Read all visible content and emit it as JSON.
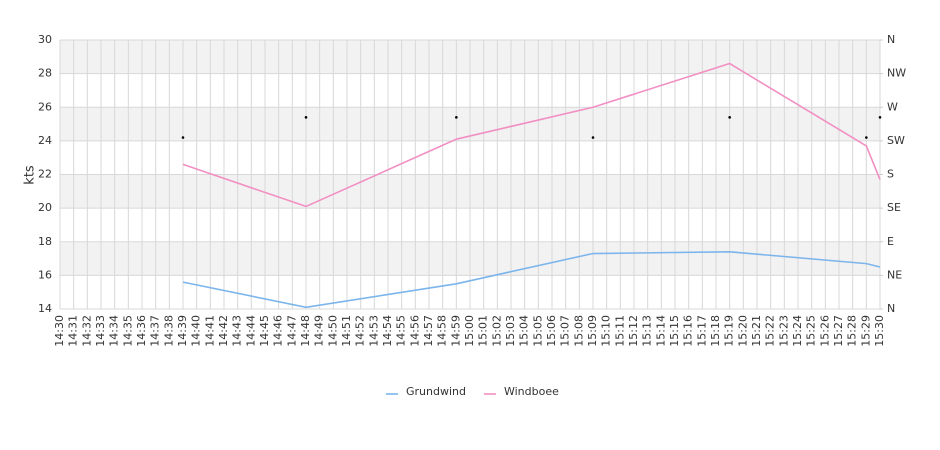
{
  "chart_data": {
    "type": "line",
    "categories": [
      "14:30",
      "14:31",
      "14:32",
      "14:33",
      "14:34",
      "14:35",
      "14:36",
      "14:37",
      "14:38",
      "14:39",
      "14:40",
      "14:41",
      "14:42",
      "14:43",
      "14:44",
      "14:45",
      "14:46",
      "14:47",
      "14:48",
      "14:49",
      "14:50",
      "14:51",
      "14:52",
      "14:53",
      "14:54",
      "14:55",
      "14:56",
      "14:57",
      "14:58",
      "14:59",
      "15:00",
      "15:01",
      "15:02",
      "15:03",
      "15:04",
      "15:05",
      "15:06",
      "15:07",
      "15:08",
      "15:09",
      "15:10",
      "15:11",
      "15:12",
      "15:13",
      "15:14",
      "15:15",
      "15:16",
      "15:17",
      "15:18",
      "15:19",
      "15:20",
      "15:21",
      "15:22",
      "15:23",
      "15:24",
      "15:25",
      "15:26",
      "15:27",
      "15:28",
      "15:29",
      "15:30"
    ],
    "ylabel": "kts",
    "ylim": [
      14,
      30
    ],
    "yticks": [
      14,
      16,
      18,
      20,
      22,
      24,
      26,
      28,
      30
    ],
    "y2lim": [
      0,
      360
    ],
    "y2ticks": [
      {
        "value": 0,
        "label": "N"
      },
      {
        "value": 45,
        "label": "NE"
      },
      {
        "value": 90,
        "label": "E"
      },
      {
        "value": 135,
        "label": "SE"
      },
      {
        "value": 180,
        "label": "S"
      },
      {
        "value": 225,
        "label": "SW"
      },
      {
        "value": 270,
        "label": "W"
      },
      {
        "value": 315,
        "label": "NW"
      },
      {
        "value": 360,
        "label": "N"
      }
    ],
    "bands": true,
    "grid": true,
    "legend": "bottom",
    "series": [
      {
        "name": "Grundwind",
        "color": "#7cb5ec",
        "x": [
          "14:39",
          "14:48",
          "14:59",
          "15:09",
          "15:19",
          "15:29",
          "15:30"
        ],
        "values": [
          15.6,
          14.1,
          15.5,
          17.3,
          17.4,
          16.7,
          16.5
        ]
      },
      {
        "name": "Windboee",
        "color": "#f28fc3",
        "x": [
          "14:39",
          "14:48",
          "14:59",
          "15:09",
          "15:19",
          "15:29",
          "15:30"
        ],
        "values": [
          22.6,
          20.1,
          24.1,
          26.0,
          28.6,
          23.7,
          21.7
        ]
      }
    ],
    "direction": {
      "axis": "y2",
      "color": "#000000",
      "x": [
        "14:39",
        "14:48",
        "14:59",
        "15:09",
        "15:19",
        "15:29",
        "15:30"
      ],
      "values": [
        229.5,
        256.5,
        256.5,
        229.5,
        256.5,
        229.5,
        256.5
      ]
    }
  }
}
